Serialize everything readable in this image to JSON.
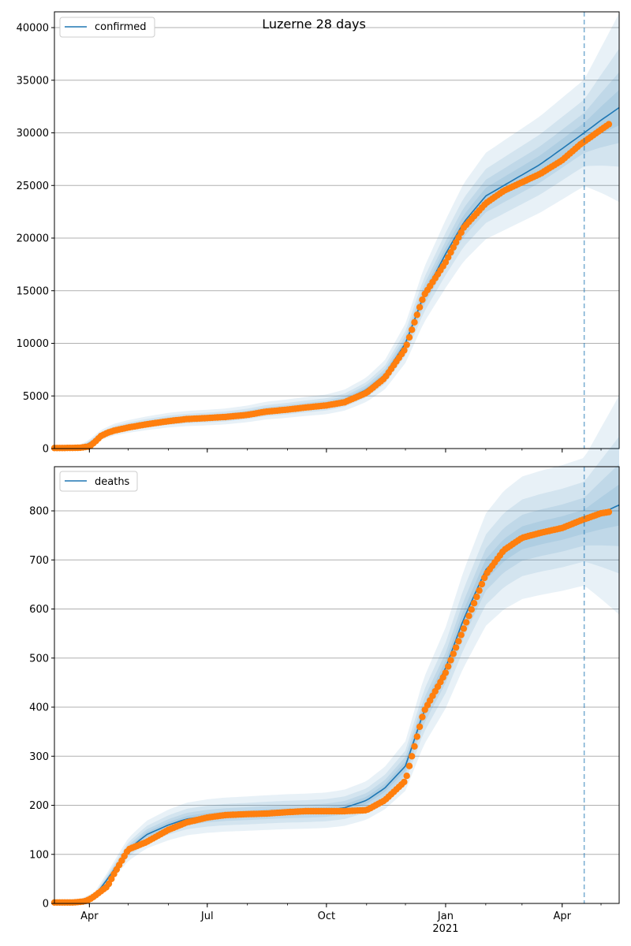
{
  "title": "Luzerne 28 days",
  "colors": {
    "fit": "#1f77b4",
    "observed": "#ff7f0e",
    "band": "#1f77b4",
    "grid": "#b0b0b0",
    "forecast_line": "#1f77b4"
  },
  "chart_data": [
    {
      "type": "line",
      "panel": "top",
      "title": "Luzerne 28 days",
      "legend": "top-left",
      "legend_entries": [
        "confirmed"
      ],
      "grid": "horizontal",
      "xlim": [
        "2020-03-05",
        "2021-05-15"
      ],
      "ylim": [
        0,
        41500
      ],
      "yticks": [
        0,
        5000,
        10000,
        15000,
        20000,
        25000,
        30000,
        35000,
        40000
      ],
      "xticks": [
        {
          "date": "2020-04-01",
          "label": ""
        },
        {
          "date": "2020-07-01",
          "label": ""
        },
        {
          "date": "2020-10-01",
          "label": ""
        },
        {
          "date": "2021-01-01",
          "label": ""
        },
        {
          "date": "2021-04-01",
          "label": ""
        }
      ],
      "forecast_start": "2021-04-18",
      "series": [
        {
          "name": "confirmed",
          "kind": "fit-line",
          "x": [
            "2020-03-05",
            "2020-03-25",
            "2020-04-01",
            "2020-04-10",
            "2020-04-20",
            "2020-05-01",
            "2020-05-15",
            "2020-06-01",
            "2020-06-15",
            "2020-07-01",
            "2020-07-15",
            "2020-08-01",
            "2020-08-15",
            "2020-09-01",
            "2020-09-15",
            "2020-10-01",
            "2020-10-15",
            "2020-11-01",
            "2020-11-15",
            "2020-12-01",
            "2020-12-15",
            "2021-01-01",
            "2021-01-15",
            "2021-02-01",
            "2021-02-15",
            "2021-03-01",
            "2021-03-15",
            "2021-04-01",
            "2021-04-18",
            "2021-05-01",
            "2021-05-15"
          ],
          "y": [
            50,
            100,
            500,
            1300,
            1800,
            2100,
            2400,
            2700,
            2850,
            2950,
            3050,
            3300,
            3600,
            3800,
            4000,
            4200,
            4600,
            5600,
            7000,
            10000,
            14500,
            18500,
            21500,
            24000,
            25000,
            26000,
            27000,
            28500,
            30000,
            31200,
            32400
          ]
        },
        {
          "name": "",
          "kind": "observed",
          "x": [
            "2020-03-05",
            "2020-03-20",
            "2020-03-25",
            "2020-04-01",
            "2020-04-05",
            "2020-04-10",
            "2020-04-15",
            "2020-04-20",
            "2020-05-01",
            "2020-05-15",
            "2020-06-01",
            "2020-06-15",
            "2020-07-01",
            "2020-07-15",
            "2020-08-01",
            "2020-08-15",
            "2020-09-01",
            "2020-09-15",
            "2020-10-01",
            "2020-10-15",
            "2020-11-01",
            "2020-11-15",
            "2020-12-01",
            "2020-12-15",
            "2021-01-01",
            "2021-01-15",
            "2021-02-01",
            "2021-02-15",
            "2021-03-01",
            "2021-03-15",
            "2021-04-01",
            "2021-04-15",
            "2021-05-01",
            "2021-05-08"
          ],
          "y": [
            50,
            60,
            80,
            200,
            600,
            1200,
            1500,
            1700,
            2000,
            2300,
            2600,
            2800,
            2900,
            3000,
            3200,
            3500,
            3700,
            3900,
            4100,
            4400,
            5300,
            6700,
            9500,
            14500,
            17700,
            21000,
            23300,
            24500,
            25300,
            26100,
            27400,
            28900,
            30300,
            30900
          ]
        }
      ],
      "bands": [
        {
          "offsets": [
            0.16,
            0.1,
            0.06,
            0.03
          ]
        }
      ]
    },
    {
      "type": "line",
      "panel": "bottom",
      "legend": "top-left",
      "legend_entries": [
        "deaths"
      ],
      "grid": "horizontal",
      "xlim": [
        "2020-03-05",
        "2021-05-15"
      ],
      "ylim": [
        0,
        890
      ],
      "yticks": [
        0,
        100,
        200,
        300,
        400,
        500,
        600,
        700,
        800
      ],
      "xticks": [
        {
          "date": "2020-04-01",
          "label": "Apr"
        },
        {
          "date": "2020-07-01",
          "label": "Jul"
        },
        {
          "date": "2020-10-01",
          "label": "Oct"
        },
        {
          "date": "2021-01-01",
          "label": "Jan",
          "sublabel": "2021"
        },
        {
          "date": "2021-04-01",
          "label": "Apr"
        }
      ],
      "forecast_start": "2021-04-18",
      "series": [
        {
          "name": "deaths",
          "kind": "fit-line",
          "x": [
            "2020-03-05",
            "2020-03-25",
            "2020-04-05",
            "2020-04-15",
            "2020-05-01",
            "2020-05-15",
            "2020-06-01",
            "2020-06-15",
            "2020-07-01",
            "2020-07-15",
            "2020-08-01",
            "2020-08-15",
            "2020-09-01",
            "2020-09-15",
            "2020-10-01",
            "2020-10-15",
            "2020-11-01",
            "2020-11-15",
            "2020-12-01",
            "2020-12-15",
            "2021-01-01",
            "2021-01-15",
            "2021-02-01",
            "2021-02-15",
            "2021-03-01",
            "2021-03-15",
            "2021-04-01",
            "2021-04-18",
            "2021-05-01",
            "2021-05-15"
          ],
          "y": [
            2,
            3,
            15,
            50,
            110,
            140,
            160,
            172,
            178,
            181,
            183,
            185,
            187,
            188,
            190,
            195,
            210,
            235,
            280,
            390,
            480,
            580,
            680,
            720,
            745,
            755,
            765,
            778,
            795,
            812
          ]
        },
        {
          "name": "",
          "kind": "observed",
          "x": [
            "2020-03-05",
            "2020-03-20",
            "2020-03-28",
            "2020-04-01",
            "2020-04-05",
            "2020-04-10",
            "2020-04-15",
            "2020-04-20",
            "2020-05-01",
            "2020-05-15",
            "2020-06-01",
            "2020-06-15",
            "2020-07-01",
            "2020-07-15",
            "2020-08-01",
            "2020-08-15",
            "2020-09-01",
            "2020-09-15",
            "2020-10-01",
            "2020-10-15",
            "2020-11-01",
            "2020-11-15",
            "2020-12-01",
            "2020-12-15",
            "2021-01-01",
            "2021-01-15",
            "2021-02-01",
            "2021-02-15",
            "2021-03-01",
            "2021-03-15",
            "2021-04-01",
            "2021-04-15",
            "2021-05-01",
            "2021-05-08"
          ],
          "y": [
            2,
            2,
            4,
            8,
            15,
            25,
            35,
            60,
            110,
            125,
            150,
            165,
            175,
            180,
            182,
            183,
            186,
            188,
            188,
            188,
            190,
            210,
            250,
            390,
            470,
            560,
            670,
            720,
            745,
            755,
            765,
            780,
            795,
            798
          ]
        }
      ],
      "bands": [
        {
          "offsets": [
            0.16,
            0.1,
            0.06,
            0.03
          ]
        }
      ]
    }
  ]
}
